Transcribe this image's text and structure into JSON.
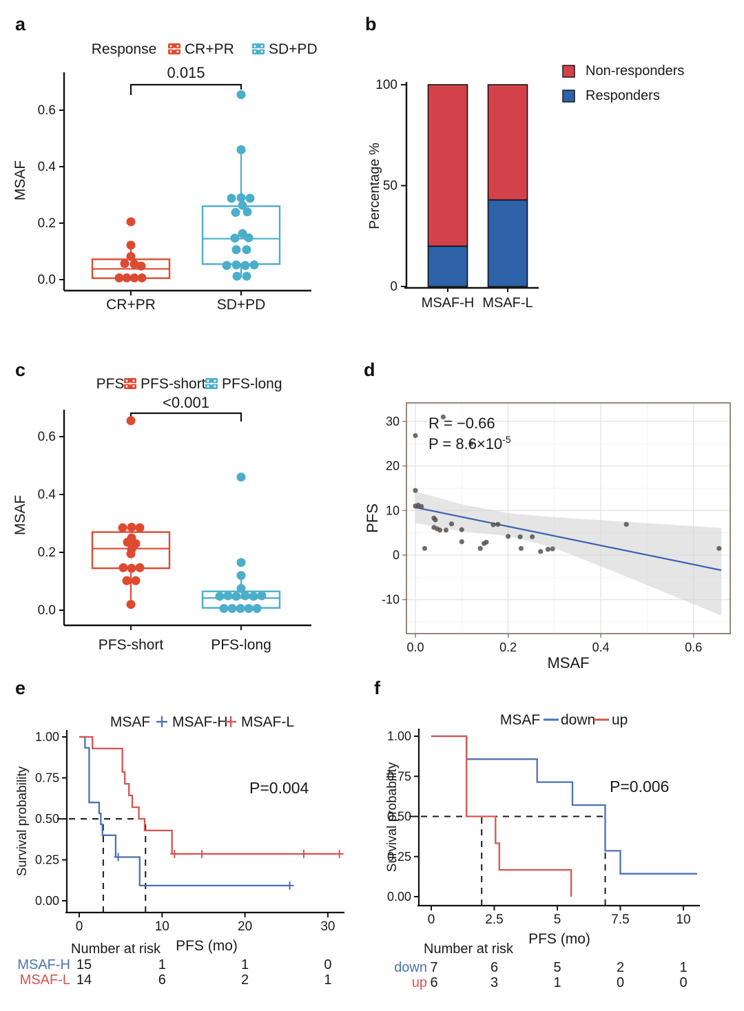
{
  "figure": {
    "background": "#ffffff"
  },
  "panels": [
    {
      "id": "a",
      "label": "a"
    },
    {
      "id": "b",
      "label": "b"
    },
    {
      "id": "c",
      "label": "c"
    },
    {
      "id": "d",
      "label": "d"
    },
    {
      "id": "e",
      "label": "e"
    },
    {
      "id": "f",
      "label": "f"
    }
  ],
  "chart_data": [
    {
      "panel": "a",
      "type": "boxplot",
      "legend": {
        "title": "Response",
        "items": [
          {
            "label": "CR+PR",
            "color": "#DD4A31"
          },
          {
            "label": "SD+PD",
            "color": "#4BAECB"
          }
        ]
      },
      "significance_label": "0.015",
      "ylabel": "MSAF",
      "ytick_labels": [
        "0.0",
        "0.2",
        "0.4",
        "0.6"
      ],
      "ytick_values": [
        0.0,
        0.2,
        0.4,
        0.6
      ],
      "categories": [
        "CR+PR",
        "SD+PD"
      ],
      "groups": [
        {
          "name": "CR+PR",
          "color": "#DD4A31",
          "box": {
            "q1": 0.005,
            "median": 0.038,
            "q3": 0.072,
            "whisker_low": 0.005,
            "whisker_high": 0.12
          },
          "points": [
            [
              0,
              0.205
            ],
            [
              0,
              0.122
            ],
            [
              0,
              0.082
            ],
            [
              -9,
              0.057
            ],
            [
              5,
              0.055
            ],
            [
              15,
              0.048
            ],
            [
              -17,
              0.006
            ],
            [
              -6,
              0.006
            ],
            [
              5,
              0.006
            ],
            [
              16,
              0.006
            ]
          ]
        },
        {
          "name": "SD+PD",
          "color": "#4BAECB",
          "box": {
            "q1": 0.055,
            "median": 0.145,
            "q3": 0.26,
            "whisker_low": 0.008,
            "whisker_high": 0.46
          },
          "points": [
            [
              0,
              0.655
            ],
            [
              0,
              0.46
            ],
            [
              -14,
              0.288
            ],
            [
              0,
              0.29
            ],
            [
              13,
              0.288
            ],
            [
              2,
              0.263
            ],
            [
              -8,
              0.238
            ],
            [
              9,
              0.24
            ],
            [
              2,
              0.163
            ],
            [
              -9,
              0.147
            ],
            [
              11,
              0.148
            ],
            [
              -7,
              0.106
            ],
            [
              8,
              0.106
            ],
            [
              -21,
              0.05
            ],
            [
              -7,
              0.052
            ],
            [
              6,
              0.05
            ],
            [
              19,
              0.052
            ],
            [
              -6,
              0.012
            ],
            [
              8,
              0.012
            ]
          ]
        }
      ]
    },
    {
      "panel": "b",
      "type": "stacked_bar",
      "ylabel": "Percentage %",
      "ytick_labels": [
        "0",
        "50",
        "100"
      ],
      "ytick_values": [
        0,
        50,
        100
      ],
      "categories": [
        "MSAF-H",
        "MSAF-L"
      ],
      "series": [
        {
          "name": "Responders",
          "color": "#2D62A8",
          "values": [
            20,
            42.9
          ]
        },
        {
          "name": "Non-responders",
          "color": "#D3424B",
          "values": [
            80,
            57.1
          ]
        }
      ],
      "legend": {
        "items": [
          {
            "label": "Non-responders",
            "color": "#D3424B"
          },
          {
            "label": "Responders",
            "color": "#2D62A8"
          }
        ]
      }
    },
    {
      "panel": "c",
      "type": "boxplot",
      "legend": {
        "title": "PFS",
        "items": [
          {
            "label": "PFS-short",
            "color": "#DD4A31"
          },
          {
            "label": "PFS-long",
            "color": "#4BAECB"
          }
        ]
      },
      "significance_label": "<0.001",
      "ylabel": "MSAF",
      "ytick_labels": [
        "0.0",
        "0.2",
        "0.4",
        "0.6"
      ],
      "ytick_values": [
        0.0,
        0.2,
        0.4,
        0.6
      ],
      "categories": [
        "PFS-short",
        "PFS-long"
      ],
      "groups": [
        {
          "name": "PFS-short",
          "color": "#DD4A31",
          "box": {
            "q1": 0.145,
            "median": 0.213,
            "q3": 0.27,
            "whisker_low": 0.02,
            "whisker_high": 0.285
          },
          "points": [
            [
              0,
              0.655
            ],
            [
              -12,
              0.285
            ],
            [
              1,
              0.287
            ],
            [
              13,
              0.285
            ],
            [
              1,
              0.25
            ],
            [
              -5,
              0.235
            ],
            [
              7,
              0.23
            ],
            [
              1,
              0.21
            ],
            [
              0,
              0.195
            ],
            [
              -11,
              0.147
            ],
            [
              1,
              0.145
            ],
            [
              13,
              0.147
            ],
            [
              -6,
              0.102
            ],
            [
              7,
              0.102
            ],
            [
              0,
              0.02
            ]
          ]
        },
        {
          "name": "PFS-long",
          "color": "#4BAECB",
          "box": {
            "q1": 0.008,
            "median": 0.042,
            "q3": 0.065,
            "whisker_low": 0.008,
            "whisker_high": 0.12
          },
          "points": [
            [
              0,
              0.46
            ],
            [
              0,
              0.165
            ],
            [
              0,
              0.12
            ],
            [
              0,
              0.075
            ],
            [
              -31,
              0.048
            ],
            [
              -19,
              0.05
            ],
            [
              -7,
              0.048
            ],
            [
              6,
              0.05
            ],
            [
              18,
              0.048
            ],
            [
              30,
              0.05
            ],
            [
              -25,
              0.006
            ],
            [
              -13,
              0.006
            ],
            [
              -1,
              0.006
            ],
            [
              11,
              0.006
            ],
            [
              23,
              0.006
            ]
          ]
        }
      ]
    },
    {
      "panel": "d",
      "type": "scatter",
      "annotation": {
        "r_label": "R = −0.66",
        "p_base": "P = 8.6×10",
        "p_exp": "-5"
      },
      "xlabel": "MSAF",
      "ylabel": "PFS",
      "xtick_labels": [
        "0.0",
        "0.2",
        "0.4",
        "0.6"
      ],
      "xtick_values": [
        0.0,
        0.2,
        0.4,
        0.6
      ],
      "xminor_values": [
        0.1,
        0.3,
        0.5
      ],
      "ytick_labels": [
        "-10",
        "0",
        "10",
        "20",
        "30"
      ],
      "ytick_values": [
        -10,
        0,
        10,
        20,
        30
      ],
      "yminor_values": [
        -15,
        -5,
        5,
        15,
        25
      ],
      "point_color": "#57524E",
      "points": [
        [
          0.0,
          14.5
        ],
        [
          0.0,
          26.8
        ],
        [
          0.06,
          31.0
        ],
        [
          0.12,
          25.0
        ],
        [
          0.0,
          11.0
        ],
        [
          0.006,
          11.2
        ],
        [
          0.013,
          10.9
        ],
        [
          0.02,
          1.5
        ],
        [
          0.04,
          8.3
        ],
        [
          0.043,
          7.9
        ],
        [
          0.04,
          6.2
        ],
        [
          0.047,
          5.9
        ],
        [
          0.053,
          5.6
        ],
        [
          0.066,
          5.6
        ],
        [
          0.078,
          7.0
        ],
        [
          0.1,
          5.7
        ],
        [
          0.1,
          3.0
        ],
        [
          0.14,
          1.5
        ],
        [
          0.148,
          2.6
        ],
        [
          0.153,
          2.9
        ],
        [
          0.168,
          6.8
        ],
        [
          0.178,
          6.9
        ],
        [
          0.2,
          4.2
        ],
        [
          0.226,
          4.1
        ],
        [
          0.228,
          1.5
        ],
        [
          0.252,
          4.1
        ],
        [
          0.27,
          0.8
        ],
        [
          0.286,
          1.3
        ],
        [
          0.296,
          1.4
        ],
        [
          0.455,
          6.9
        ],
        [
          0.655,
          1.5
        ]
      ],
      "regression": {
        "x1": 0.0,
        "y1": 10.7,
        "x2": 0.66,
        "y2": -3.4,
        "color": "#3A63AE"
      },
      "ci_band": {
        "color": "#D4D4D4",
        "upper": [
          [
            0,
            14.3
          ],
          [
            0.1,
            11.4
          ],
          [
            0.2,
            9.4
          ],
          [
            0.3,
            8.5
          ],
          [
            0.45,
            7.5
          ],
          [
            0.66,
            6.1
          ]
        ],
        "lower": [
          [
            0,
            7.2
          ],
          [
            0.1,
            5.3
          ],
          [
            0.2,
            4.3
          ],
          [
            0.3,
            1.6
          ],
          [
            0.45,
            -4.6
          ],
          [
            0.66,
            -13.6
          ]
        ]
      }
    },
    {
      "panel": "e",
      "type": "km",
      "legend": {
        "title": "MSAF",
        "glyph": "plus",
        "items": [
          {
            "label": "MSAF-H",
            "color": "#4A72B5"
          },
          {
            "label": "MSAF-L",
            "color": "#D65450"
          }
        ]
      },
      "p_label": "P=0.004",
      "xlabel": "PFS (mo)",
      "ylabel": "Survival probability",
      "xtick_labels": [
        "0",
        "10",
        "20",
        "30"
      ],
      "xtick_values": [
        0,
        10,
        20,
        30
      ],
      "ytick_labels": [
        "0.00",
        "0.25",
        "0.50",
        "0.75",
        "1.00"
      ],
      "ytick_values": [
        0,
        0.25,
        0.5,
        0.75,
        1.0
      ],
      "curves": [
        {
          "name": "MSAF-H",
          "color": "#4A72B5",
          "steps": [
            [
              0,
              1
            ],
            [
              0.7,
              1
            ],
            [
              0.7,
              0.933
            ],
            [
              1.2,
              0.933
            ],
            [
              1.2,
              0.6
            ],
            [
              2.4,
              0.6
            ],
            [
              2.4,
              0.533
            ],
            [
              2.6,
              0.533
            ],
            [
              2.6,
              0.467
            ],
            [
              2.8,
              0.467
            ],
            [
              2.8,
              0.4
            ],
            [
              4.4,
              0.4
            ],
            [
              4.4,
              0.267
            ],
            [
              7.3,
              0.267
            ],
            [
              7.3,
              0.093
            ],
            [
              25.4,
              0.093
            ]
          ],
          "censors": [
            [
              4.7,
              0.267
            ],
            [
              25.4,
              0.093
            ]
          ]
        },
        {
          "name": "MSAF-L",
          "color": "#D65450",
          "steps": [
            [
              0,
              1
            ],
            [
              1.6,
              1
            ],
            [
              1.6,
              0.929
            ],
            [
              5.2,
              0.929
            ],
            [
              5.2,
              0.786
            ],
            [
              5.5,
              0.786
            ],
            [
              5.5,
              0.714
            ],
            [
              6.0,
              0.714
            ],
            [
              6.0,
              0.643
            ],
            [
              6.4,
              0.643
            ],
            [
              6.4,
              0.571
            ],
            [
              7.2,
              0.571
            ],
            [
              7.2,
              0.5
            ],
            [
              7.9,
              0.5
            ],
            [
              7.9,
              0.429
            ],
            [
              11.2,
              0.429
            ],
            [
              11.2,
              0.286
            ],
            [
              31.4,
              0.286
            ]
          ],
          "censors": [
            [
              11.5,
              0.286
            ],
            [
              14.8,
              0.286
            ],
            [
              27.1,
              0.286
            ],
            [
              31.4,
              0.286
            ]
          ]
        }
      ],
      "median_lines": {
        "h_level": 0.5,
        "h_x_end": 8.0,
        "v_times": [
          2.9,
          8.0
        ]
      },
      "risk_table": {
        "title": "Number at risk",
        "columns": [
          0,
          10,
          20,
          30
        ],
        "rows": [
          {
            "label": "MSAF-H",
            "color": "#4A72B5",
            "values": [
              "15",
              "1",
              "1",
              "0"
            ]
          },
          {
            "label": "MSAF-L",
            "color": "#D65450",
            "values": [
              "14",
              "6",
              "2",
              "1"
            ]
          }
        ]
      }
    },
    {
      "panel": "f",
      "type": "km",
      "legend": {
        "title": "MSAF",
        "glyph": "line",
        "items": [
          {
            "label": "down",
            "color": "#4A72B5"
          },
          {
            "label": "up",
            "color": "#D65450"
          }
        ]
      },
      "p_label": "P=0.006",
      "xlabel": "PFS (mo)",
      "ylabel": "Survival probability",
      "xtick_labels": [
        "0",
        "2.5",
        "5",
        "7.5",
        "10"
      ],
      "xtick_values": [
        0,
        2.5,
        5,
        7.5,
        10
      ],
      "ytick_labels": [
        "0.00",
        "0.25",
        "0.50",
        "0.75",
        "1.00"
      ],
      "ytick_values": [
        0,
        0.25,
        0.5,
        0.75,
        1.0
      ],
      "curves": [
        {
          "name": "down",
          "color": "#4A72B5",
          "steps": [
            [
              0,
              1
            ],
            [
              1.4,
              1
            ],
            [
              1.4,
              0.857
            ],
            [
              4.2,
              0.857
            ],
            [
              4.2,
              0.714
            ],
            [
              5.6,
              0.714
            ],
            [
              5.6,
              0.571
            ],
            [
              6.9,
              0.571
            ],
            [
              6.9,
              0.286
            ],
            [
              7.5,
              0.286
            ],
            [
              7.5,
              0.143
            ],
            [
              10.55,
              0.143
            ]
          ],
          "censors": []
        },
        {
          "name": "up",
          "color": "#D65450",
          "steps": [
            [
              0.05,
              1
            ],
            [
              1.4,
              1
            ],
            [
              1.4,
              0.5
            ],
            [
              2.55,
              0.5
            ],
            [
              2.55,
              0.333
            ],
            [
              2.7,
              0.333
            ],
            [
              2.7,
              0.167
            ],
            [
              5.55,
              0.167
            ],
            [
              5.55,
              0
            ]
          ],
          "censors": []
        }
      ],
      "median_lines": {
        "h_level": 0.5,
        "h_x_end": 6.9,
        "v_times": [
          2.0,
          6.9
        ]
      },
      "risk_table": {
        "title": "Number at risk",
        "columns": [
          0,
          2.5,
          5,
          7.5,
          10
        ],
        "rows": [
          {
            "label": "down",
            "color": "#4A72B5",
            "values": [
              "7",
              "6",
              "5",
              "2",
              "1"
            ]
          },
          {
            "label": "up",
            "color": "#D65450",
            "values": [
              "6",
              "3",
              "1",
              "0",
              "0"
            ]
          }
        ]
      }
    }
  ]
}
